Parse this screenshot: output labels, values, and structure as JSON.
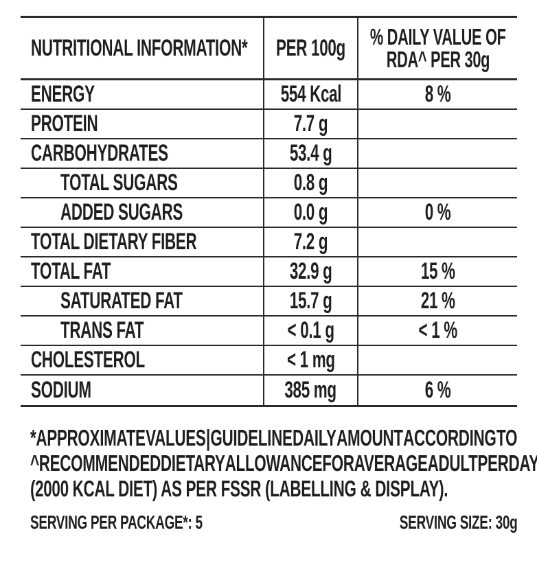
{
  "table": {
    "header": {
      "col1": "NUTRITIONAL INFORMATION*",
      "col2": "PER 100g",
      "col3_line1": "% DAILY VALUE OF",
      "col3_line2": "RDA^ PER 30g"
    },
    "rows": [
      {
        "label": "ENERGY",
        "indent": false,
        "per_100g": "554 Kcal",
        "daily_value": "8 %"
      },
      {
        "label": "PROTEIN",
        "indent": false,
        "per_100g": "7.7 g",
        "daily_value": ""
      },
      {
        "label": "CARBOHYDRATES",
        "indent": false,
        "per_100g": "53.4 g",
        "daily_value": ""
      },
      {
        "label": "TOTAL SUGARS",
        "indent": true,
        "per_100g": "0.8 g",
        "daily_value": ""
      },
      {
        "label": "ADDED SUGARS",
        "indent": true,
        "per_100g": "0.0 g",
        "daily_value": "0 %"
      },
      {
        "label": "TOTAL DIETARY FIBER",
        "indent": false,
        "per_100g": "7.2 g",
        "daily_value": ""
      },
      {
        "label": "TOTAL FAT",
        "indent": false,
        "per_100g": "32.9 g",
        "daily_value": "15 %"
      },
      {
        "label": "SATURATED FAT",
        "indent": true,
        "per_100g": "15.7 g",
        "daily_value": "21 %"
      },
      {
        "label": "TRANS FAT",
        "indent": true,
        "per_100g": "< 0.1 g",
        "daily_value": "< 1 %"
      },
      {
        "label": "CHOLESTEROL",
        "indent": false,
        "per_100g": "< 1 mg",
        "daily_value": ""
      },
      {
        "label": "SODIUM",
        "indent": false,
        "per_100g": "385 mg",
        "daily_value": "6 %"
      }
    ]
  },
  "footnote": {
    "lines": [
      "*APPROXIMATE VALUES | GUIDELINE DAILY AMOUNT ACCORDING TO",
      "^RECOMMENDED DIETARY ALLOWANCE FOR AVERAGE ADULT PER DAY",
      "(2000 KCAL DIET) AS PER FSSR (LABELLING & DISPLAY)."
    ]
  },
  "serving": {
    "per_package": "SERVING PER PACKAGE*: 5",
    "size": "SERVING SIZE: 30g"
  },
  "colors": {
    "text": "#1f1f1f",
    "line": "#2b2b2b",
    "background": "#ffffff"
  }
}
